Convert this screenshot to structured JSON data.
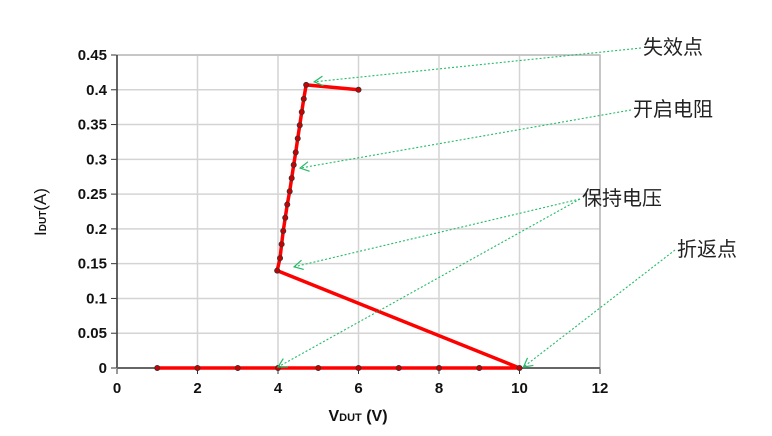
{
  "chart_data": {
    "type": "line",
    "title": "",
    "xlabel": {
      "main": "V",
      "sub": "DUT",
      "unit": " (V)"
    },
    "ylabel": {
      "main": "I",
      "sub": "DUT",
      "unit": "(A)"
    },
    "xlim": [
      0,
      12
    ],
    "ylim": [
      0,
      0.45
    ],
    "xticks": [
      "0",
      "2",
      "4",
      "6",
      "8",
      "10",
      "12"
    ],
    "yticks": [
      "0",
      "0.05",
      "0.1",
      "0.15",
      "0.2",
      "0.25",
      "0.3",
      "0.35",
      "0.4",
      "0.45"
    ],
    "grid": true,
    "line_color": "#ff0000",
    "annotation_color": "#22bb66",
    "series": [
      {
        "x": [
          1,
          2,
          3,
          4,
          5,
          6,
          7,
          8,
          9,
          10,
          3.98,
          4.05,
          4.09,
          4.13,
          4.18,
          4.23,
          4.29,
          4.34,
          4.39,
          4.44,
          4.49,
          4.54,
          4.59,
          4.64,
          4.7,
          6.0
        ],
        "y": [
          0,
          0,
          0,
          0,
          0,
          0,
          0,
          0,
          0,
          0,
          0.14,
          0.158,
          0.178,
          0.197,
          0.216,
          0.235,
          0.254,
          0.273,
          0.292,
          0.31,
          0.33,
          0.349,
          0.368,
          0.387,
          0.407,
          0.4
        ]
      }
    ],
    "annotations": [
      {
        "text": "失效点",
        "targets": [
          [
            4.8,
            0.41
          ]
        ]
      },
      {
        "text": "开启电阻",
        "targets": [
          [
            4.45,
            0.286
          ]
        ]
      },
      {
        "text": "保持电压",
        "targets": [
          [
            4.3,
            0.144
          ],
          [
            3.9,
            0
          ]
        ]
      },
      {
        "text": "折返点",
        "targets": [
          [
            10,
            0
          ]
        ]
      }
    ]
  }
}
